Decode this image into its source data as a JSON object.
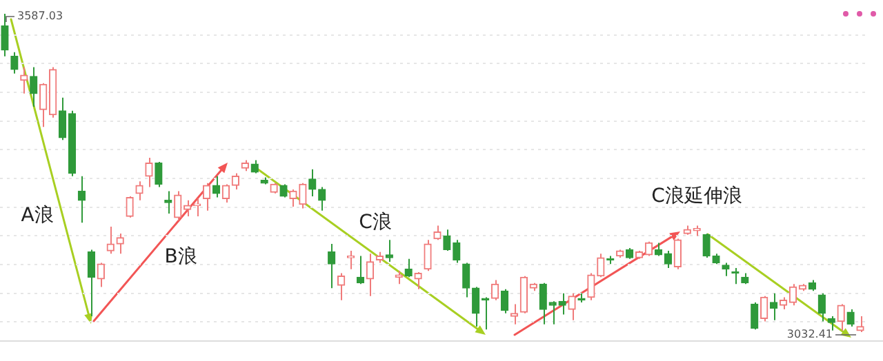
{
  "chart_data": {
    "type": "candlestick",
    "categories": [
      null,
      null,
      null,
      null,
      null,
      null,
      null,
      null,
      null,
      null,
      null,
      null,
      null,
      null,
      null,
      null,
      null,
      null,
      null,
      null,
      null,
      null,
      null,
      null,
      null,
      null,
      null,
      null,
      null,
      null,
      null,
      null,
      null,
      null,
      null,
      null,
      null,
      null,
      null,
      null,
      null,
      null,
      null,
      null,
      null,
      null,
      null,
      null,
      null,
      null,
      null,
      null,
      null,
      null,
      null,
      null,
      null,
      null,
      null,
      null,
      null,
      null,
      null,
      null,
      null,
      null,
      null,
      null,
      null,
      null,
      null,
      null,
      null,
      null,
      null,
      null,
      null,
      null,
      null,
      null,
      null,
      null,
      null,
      null,
      null,
      null,
      null,
      null,
      null,
      null
    ],
    "ohlc": [
      [
        3566,
        3587.03,
        3513,
        3524
      ],
      [
        3513,
        3520,
        3483,
        3490
      ],
      [
        3471,
        3494,
        3448,
        3480
      ],
      [
        3478,
        3494,
        3425,
        3448
      ],
      [
        3420,
        3466,
        3390,
        3464
      ],
      [
        3411,
        3494,
        3406,
        3490
      ],
      [
        3418,
        3441,
        3367,
        3371
      ],
      [
        3413,
        3418,
        3304,
        3309
      ],
      [
        3278,
        3304,
        3223,
        3262
      ],
      [
        3172,
        3176,
        3060,
        3128
      ],
      [
        3125,
        3153,
        3111,
        3151
      ],
      [
        3174,
        3216,
        3169,
        3186
      ],
      [
        3186,
        3204,
        3169,
        3197
      ],
      [
        3234,
        3269,
        3232,
        3267
      ],
      [
        3274,
        3295,
        3262,
        3288
      ],
      [
        3304,
        3336,
        3285,
        3327
      ],
      [
        3327,
        3329,
        3285,
        3290
      ],
      [
        3262,
        3278,
        3239,
        3258
      ],
      [
        3232,
        3278,
        3227,
        3271
      ],
      [
        3246,
        3262,
        3234,
        3253
      ],
      [
        3253,
        3265,
        3234,
        3255
      ],
      [
        3265,
        3292,
        3244,
        3288
      ],
      [
        3288,
        3304,
        3267,
        3274
      ],
      [
        3265,
        3290,
        3258,
        3288
      ],
      [
        3288,
        3309,
        3281,
        3304
      ],
      [
        3318,
        3332,
        3313,
        3327
      ],
      [
        3325,
        3332,
        3309,
        3311
      ],
      [
        3297,
        3302,
        3290,
        3292
      ],
      [
        3276,
        3292,
        3274,
        3290
      ],
      [
        3288,
        3290,
        3267,
        3269
      ],
      [
        3265,
        3281,
        3251,
        3278
      ],
      [
        3255,
        3292,
        3248,
        3290
      ],
      [
        3299,
        3316,
        3269,
        3281
      ],
      [
        3281,
        3285,
        3244,
        3262
      ],
      [
        3172,
        3186,
        3109,
        3151
      ],
      [
        3114,
        3135,
        3088,
        3130
      ],
      [
        3162,
        3174,
        3142,
        3165
      ],
      [
        3128,
        3165,
        3116,
        3118
      ],
      [
        3125,
        3169,
        3095,
        3155
      ],
      [
        3158,
        3172,
        3153,
        3165
      ],
      [
        3167,
        3193,
        3155,
        3162
      ],
      [
        3128,
        3139,
        3116,
        3132
      ],
      [
        3142,
        3160,
        3128,
        3130
      ],
      [
        3125,
        3137,
        3107,
        3135
      ],
      [
        3142,
        3193,
        3139,
        3186
      ],
      [
        3195,
        3218,
        3193,
        3207
      ],
      [
        3200,
        3211,
        3174,
        3176
      ],
      [
        3188,
        3193,
        3153,
        3158
      ],
      [
        3151,
        3153,
        3093,
        3109
      ],
      [
        3109,
        3111,
        3042,
        3065
      ],
      [
        3091,
        3093,
        3037,
        3088
      ],
      [
        3091,
        3123,
        3088,
        3116
      ],
      [
        3104,
        3107,
        3065,
        3070
      ],
      [
        3060,
        3081,
        3046,
        3065
      ],
      [
        3067,
        3130,
        3065,
        3128
      ],
      [
        3109,
        3118,
        3104,
        3116
      ],
      [
        3116,
        3118,
        3046,
        3072
      ],
      [
        3084,
        3086,
        3046,
        3079
      ],
      [
        3086,
        3100,
        3063,
        3079
      ],
      [
        3072,
        3100,
        3053,
        3095
      ],
      [
        3091,
        3100,
        3084,
        3088
      ],
      [
        3093,
        3135,
        3088,
        3132
      ],
      [
        3130,
        3169,
        3128,
        3162
      ],
      [
        3160,
        3165,
        3151,
        3158
      ],
      [
        3165,
        3176,
        3162,
        3174
      ],
      [
        3176,
        3179,
        3160,
        3162
      ],
      [
        3162,
        3174,
        3160,
        3172
      ],
      [
        3167,
        3190,
        3165,
        3188
      ],
      [
        3176,
        3188,
        3165,
        3167
      ],
      [
        3169,
        3174,
        3144,
        3151
      ],
      [
        3146,
        3195,
        3142,
        3193
      ],
      [
        3204,
        3218,
        3202,
        3211
      ],
      [
        3209,
        3218,
        3200,
        3213
      ],
      [
        3202,
        3204,
        3162,
        3165
      ],
      [
        3165,
        3169,
        3151,
        3153
      ],
      [
        3149,
        3153,
        3130,
        3142
      ],
      [
        3137,
        3144,
        3116,
        3135
      ],
      [
        3128,
        3135,
        3116,
        3118
      ],
      [
        3081,
        3084,
        3037,
        3039
      ],
      [
        3056,
        3095,
        3051,
        3093
      ],
      [
        3084,
        3100,
        3053,
        3074
      ],
      [
        3079,
        3093,
        3072,
        3088
      ],
      [
        3084,
        3116,
        3079,
        3111
      ],
      [
        3107,
        3116,
        3104,
        3114
      ],
      [
        3118,
        3123,
        3104,
        3107
      ],
      [
        3097,
        3100,
        3051,
        3065
      ],
      [
        3056,
        3060,
        3035,
        3049
      ],
      [
        3051,
        3081,
        3035,
        3079
      ],
      [
        3067,
        3072,
        3042,
        3046
      ],
      [
        3035,
        3060,
        3032.41,
        3042
      ]
    ],
    "annotations": [
      "3587.03",
      "3032.41",
      "A浪",
      "B浪",
      "C浪",
      "C浪延伸浪"
    ],
    "yticks": [
      {
        "value": 3050,
        "label": null
      },
      {
        "value": 3100,
        "label": null
      },
      {
        "value": 3150,
        "label": null
      },
      {
        "value": 3200,
        "label": null
      },
      {
        "value": 3250,
        "label": null
      },
      {
        "value": 3300,
        "label": null
      },
      {
        "value": 3350,
        "label": null
      },
      {
        "value": 3400,
        "label": null
      },
      {
        "value": 3450,
        "label": null
      },
      {
        "value": 3500,
        "label": null
      },
      {
        "value": 3550,
        "label": null
      }
    ],
    "grid": "y",
    "tick_labels": false
  }
}
